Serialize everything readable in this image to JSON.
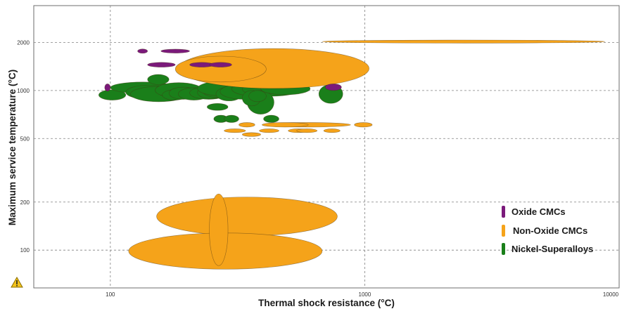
{
  "chart_data": {
    "type": "bubble-ellipse (Ashby chart)",
    "xlabel": "Thermal shock resistance (°C)",
    "ylabel": "Maximum service temperature (°C)",
    "x_scale": "log",
    "y_scale": "log",
    "xlim": [
      50,
      10000
    ],
    "ylim": [
      58,
      3400
    ],
    "x_ticks": [
      {
        "value": 100,
        "label": "100"
      },
      {
        "value": 1000,
        "label": "1000"
      },
      {
        "value": 10000,
        "label": "10000"
      }
    ],
    "y_ticks": [
      {
        "value": 100,
        "label": "100"
      },
      {
        "value": 200,
        "label": "200"
      },
      {
        "value": 500,
        "label": "500"
      },
      {
        "value": 1000,
        "label": "1000"
      },
      {
        "value": 2000,
        "label": "2000"
      }
    ],
    "grid": true,
    "legend_position": "bottom-right",
    "colors": {
      "oxide": "#7b1a7b",
      "nonoxide": "#f5a31a",
      "nickel": "#1a7f1a"
    },
    "series": [
      {
        "name": "Nickel-Superalloys",
        "color": "#1a7f1a",
        "ellipses": [
          {
            "x": [
              90,
              115
            ],
            "y": [
              870,
              1010
            ]
          },
          {
            "x": [
              100,
              180
            ],
            "y": [
              960,
              1130
            ]
          },
          {
            "x": [
              115,
              175
            ],
            "y": [
              880,
              1080
            ]
          },
          {
            "x": [
              120,
              200
            ],
            "y": [
              850,
              1060
            ]
          },
          {
            "x": [
              150,
              230
            ],
            "y": [
              900,
              1120
            ]
          },
          {
            "x": [
              160,
              200
            ],
            "y": [
              870,
              1010
            ]
          },
          {
            "x": [
              170,
              220
            ],
            "y": [
              880,
              1050
            ]
          },
          {
            "x": [
              185,
              245
            ],
            "y": [
              870,
              1040
            ]
          },
          {
            "x": [
              205,
              290
            ],
            "y": [
              880,
              1060
            ]
          },
          {
            "x": [
              220,
              280
            ],
            "y": [
              890,
              1060
            ]
          },
          {
            "x": [
              230,
              320
            ],
            "y": [
              900,
              1100
            ]
          },
          {
            "x": [
              220,
              370
            ],
            "y": [
              920,
              1150
            ]
          },
          {
            "x": [
              260,
              330
            ],
            "y": [
              860,
              1050
            ]
          },
          {
            "x": [
              270,
              420
            ],
            "y": [
              880,
              1100
            ]
          },
          {
            "x": [
              300,
              420
            ],
            "y": [
              930,
              1130
            ]
          },
          {
            "x": [
              330,
              560
            ],
            "y": [
              920,
              1130
            ]
          },
          {
            "x": [
              345,
              440
            ],
            "y": [
              710,
              1000
            ]
          },
          {
            "x": [
              330,
              390
            ],
            "y": [
              800,
              1000
            ]
          },
          {
            "x": [
              390,
              610
            ],
            "y": [
              940,
              1120
            ]
          },
          {
            "x": [
              350,
              410
            ],
            "y": [
              850,
              1000
            ]
          },
          {
            "x": [
              140,
              170
            ],
            "y": [
              1090,
              1260
            ]
          },
          {
            "x": [
              240,
              290
            ],
            "y": [
              750,
              830
            ]
          },
          {
            "x": [
              255,
              290
            ],
            "y": [
              630,
              700
            ]
          },
          {
            "x": [
              280,
              320
            ],
            "y": [
              630,
              700
            ]
          },
          {
            "x": [
              400,
              460
            ],
            "y": [
              630,
              700
            ]
          },
          {
            "x": [
              660,
              820
            ],
            "y": [
              830,
              1090
            ]
          }
        ]
      },
      {
        "name": "Non-Oxide CMCs",
        "color": "#f5a31a",
        "ellipses": [
          {
            "x": [
              680,
              8800
            ],
            "y": [
              1980,
              2070
            ]
          },
          {
            "x": [
              185,
              1040
            ],
            "y": [
              1030,
              1830
            ]
          },
          {
            "x": [
              180,
              410
            ],
            "y": [
              1130,
              1640
            ]
          },
          {
            "x": [
              395,
              880
            ],
            "y": [
              590,
              630
            ]
          },
          {
            "x": [
              395,
              600
            ],
            "y": [
              590,
              630
            ]
          },
          {
            "x": [
              910,
              1070
            ],
            "y": [
              590,
              630
            ]
          },
          {
            "x": [
              320,
              370
            ],
            "y": [
              590,
              630
            ]
          },
          {
            "x": [
              280,
              340
            ],
            "y": [
              545,
              575
            ]
          },
          {
            "x": [
              385,
              460
            ],
            "y": [
              545,
              575
            ]
          },
          {
            "x": [
              500,
              600
            ],
            "y": [
              545,
              575
            ]
          },
          {
            "x": [
              540,
              650
            ],
            "y": [
              545,
              575
            ]
          },
          {
            "x": [
              690,
              800
            ],
            "y": [
              545,
              575
            ]
          },
          {
            "x": [
              330,
              390
            ],
            "y": [
              515,
              545
            ]
          },
          {
            "x": [
              152,
              780
            ],
            "y": [
              123,
              215
            ]
          },
          {
            "x": [
              118,
              680
            ],
            "y": [
              76,
              128
            ]
          },
          {
            "x": [
              245,
              290
            ],
            "y": [
              80,
              225
            ]
          }
        ]
      },
      {
        "name": "Oxide CMCs",
        "color": "#7b1a7b",
        "ellipses": [
          {
            "x": [
              128,
              140
            ],
            "y": [
              1710,
              1820
            ]
          },
          {
            "x": [
              158,
              205
            ],
            "y": [
              1715,
              1815
            ]
          },
          {
            "x": [
              205,
              255
            ],
            "y": [
              1400,
              1500
            ]
          },
          {
            "x": [
              245,
              300
            ],
            "y": [
              1400,
              1500
            ]
          },
          {
            "x": [
              140,
              180
            ],
            "y": [
              1400,
              1500
            ]
          },
          {
            "x": [
              95,
              100
            ],
            "y": [
              990,
              1100
            ]
          },
          {
            "x": [
              700,
              810
            ],
            "y": [
              1000,
              1100
            ]
          }
        ]
      }
    ]
  },
  "warning_icon": "warning-triangle-icon"
}
